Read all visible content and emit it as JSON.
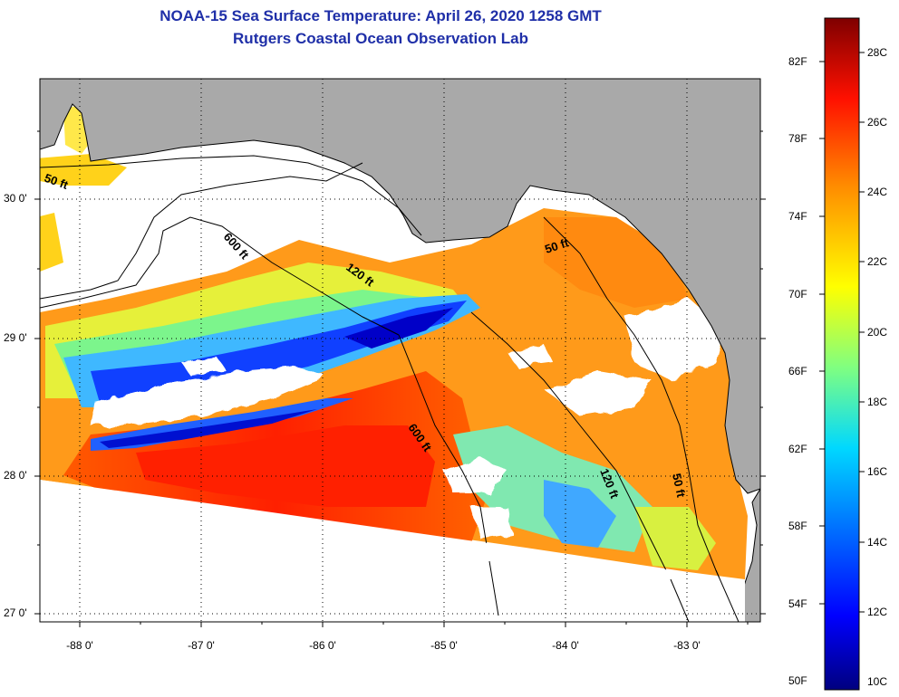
{
  "title": {
    "line1": "NOAA-15 Sea Surface Temperature:  April 26, 2020 1258 GMT",
    "line2": "Rutgers Coastal Ocean Observation Lab"
  },
  "map": {
    "lon_ticks": [
      "-88 0'",
      "-87 0'",
      "-86 0'",
      "-85 0'",
      "-84 0'",
      "-83 0'"
    ],
    "lat_ticks": [
      "30 0'",
      "29 0'",
      "28 0'",
      "27 0'"
    ],
    "depth_labels": [
      "50 ft",
      "600 ft",
      "120 ft",
      "50 ft",
      "600 ft",
      "120 ft",
      "50 ft"
    ],
    "colors": {
      "land": "#a9a9a9",
      "cloud": "#ffffff",
      "contour": "#000000"
    }
  },
  "colorbar": {
    "fahrenheit": [
      "82F",
      "78F",
      "74F",
      "70F",
      "66F",
      "62F",
      "58F",
      "54F",
      "50F"
    ],
    "celsius": [
      "28C",
      "26C",
      "24C",
      "22C",
      "20C",
      "18C",
      "16C",
      "14C",
      "12C",
      "10C"
    ],
    "stops": [
      "#00007f",
      "#0000ff",
      "#0080ff",
      "#00ffff",
      "#80ff80",
      "#ffff00",
      "#ff8000",
      "#ff0000",
      "#7f0000"
    ]
  }
}
